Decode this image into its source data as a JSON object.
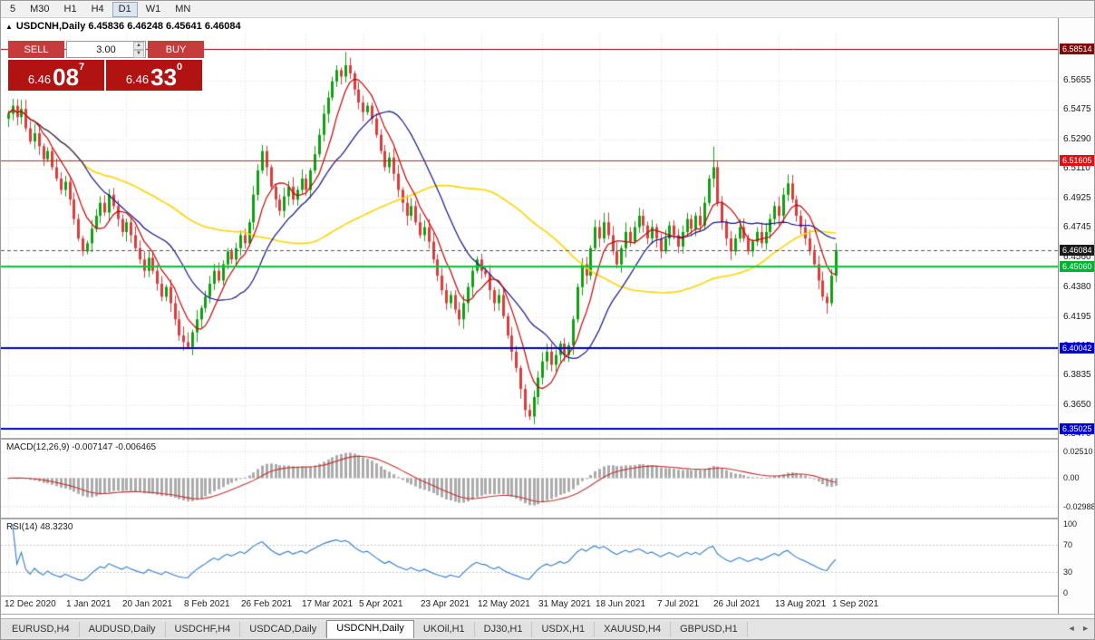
{
  "toolbar": {
    "timeframes": [
      "5",
      "M30",
      "H1",
      "H4",
      "D1",
      "W1",
      "MN"
    ],
    "active": "D1"
  },
  "chart_header": {
    "collapse_icon": "▲",
    "title": "USDCNH,Daily 6.45836 6.46248 6.45641 6.46084"
  },
  "trade_panel": {
    "sell_label": "SELL",
    "buy_label": "BUY",
    "volume": "3.00",
    "sell_price": {
      "prefix": "6.46",
      "big": "08",
      "sup": "7"
    },
    "buy_price": {
      "prefix": "6.46",
      "big": "33",
      "sup": "0"
    }
  },
  "price_scale": {
    "ticks": [
      "6.5655",
      "6.5475",
      "6.5290",
      "6.5110",
      "6.4925",
      "6.4745",
      "6.4560",
      "6.4380",
      "6.4195",
      "6.4015",
      "6.3835",
      "6.3650",
      "6.3470"
    ],
    "tags": [
      {
        "text": "6.58514",
        "price": 6.58514,
        "color": "#7d0b0b"
      },
      {
        "text": "6.51605",
        "price": 6.51605,
        "color": "#e01010"
      },
      {
        "text": "6.46084",
        "price": 6.46084,
        "color": "#1a1a1a"
      },
      {
        "text": "6.45060",
        "price": 6.4506,
        "color": "#00b22d"
      },
      {
        "text": "6.40042",
        "price": 6.40042,
        "color": "#0000d4"
      },
      {
        "text": "6.35025",
        "price": 6.35025,
        "color": "#0000d4"
      }
    ]
  },
  "levels": [
    {
      "price": 6.58514,
      "color": "#8b0000",
      "width": 1
    },
    {
      "price": 6.51605,
      "color": "#e01010",
      "width": 1
    },
    {
      "price": 6.4506,
      "color": "#00cc33",
      "width": 2
    },
    {
      "price": 6.40042,
      "color": "#0000d4",
      "width": 2
    },
    {
      "price": 6.35025,
      "color": "#0000d4",
      "width": 2
    }
  ],
  "macd_panel": {
    "label": "MACD(12,26,9) -0.007147 -0.006465",
    "scale_top": "0.02510",
    "scale_zero": "0.00",
    "scale_bottom": "-0.02988"
  },
  "rsi_panel": {
    "label": "RSI(14) 48.3230",
    "scale_labels": [
      "100",
      "70",
      "30",
      "0"
    ],
    "levels": [
      70,
      30
    ]
  },
  "date_axis": {
    "labels": [
      "12 Dec 2020",
      "1 Jan 2021",
      "20 Jan 2021",
      "8 Feb 2021",
      "26 Feb 2021",
      "17 Mar 2021",
      "5 Apr 2021",
      "23 Apr 2021",
      "12 May 2021",
      "31 May 2021",
      "18 Jun 2021",
      "7 Jul 2021",
      "26 Jul 2021",
      "13 Aug 2021",
      "1 Sep 2021"
    ],
    "indices": [
      0,
      14,
      27,
      41,
      54,
      68,
      81,
      95,
      108,
      122,
      135,
      149,
      162,
      176,
      189
    ]
  },
  "tabs": {
    "items": [
      "EURUSD,H4",
      "AUDUSD,Daily",
      "USDCHF,H4",
      "USDCAD,Daily",
      "USDCNH,Daily",
      "UKOil,H1",
      "DJ30,H1",
      "USDX,H1",
      "XAUUSD,H4",
      "GBPUSD,H1"
    ],
    "active_index": 4,
    "scroll_left_icon": "◄",
    "scroll_right_icon": "►"
  },
  "chart_data": {
    "type": "candlestick",
    "symbol": "USDCNH",
    "timeframe": "Daily",
    "last_ohlc": {
      "open": 6.45836,
      "high": 6.46248,
      "low": 6.45641,
      "close": 6.46084
    },
    "visible_price_range": {
      "top": 6.5946,
      "bottom": 6.3448
    },
    "first_open": 6.542,
    "closes": [
      6.545,
      6.55,
      6.543,
      6.548,
      6.536,
      6.528,
      6.533,
      6.525,
      6.517,
      6.522,
      6.512,
      6.505,
      6.498,
      6.503,
      6.492,
      6.48,
      6.468,
      6.46,
      6.465,
      6.474,
      6.482,
      6.49,
      6.484,
      6.495,
      6.488,
      6.48,
      6.472,
      6.478,
      6.47,
      6.462,
      6.455,
      6.448,
      6.456,
      6.448,
      6.44,
      6.432,
      6.438,
      6.428,
      6.418,
      6.408,
      6.404,
      6.401,
      6.41,
      6.418,
      6.425,
      6.432,
      6.44,
      6.448,
      6.442,
      6.452,
      6.46,
      6.455,
      6.462,
      6.47,
      6.465,
      6.478,
      6.495,
      6.51,
      6.522,
      6.512,
      6.5,
      6.492,
      6.485,
      6.494,
      6.5,
      6.492,
      6.498,
      6.505,
      6.498,
      6.51,
      6.52,
      6.532,
      6.545,
      6.555,
      6.565,
      6.572,
      6.568,
      6.575,
      6.57,
      6.56,
      6.552,
      6.546,
      6.55,
      6.542,
      6.532,
      6.522,
      6.512,
      6.518,
      6.508,
      6.498,
      6.49,
      6.482,
      6.488,
      6.478,
      6.47,
      6.475,
      6.466,
      6.455,
      6.445,
      6.436,
      6.428,
      6.433,
      6.424,
      6.418,
      6.428,
      6.438,
      6.448,
      6.455,
      6.448,
      6.446,
      6.436,
      6.428,
      6.433,
      6.42,
      6.408,
      6.398,
      6.388,
      6.375,
      6.362,
      6.358,
      6.37,
      6.382,
      6.392,
      6.398,
      6.39,
      6.396,
      6.403,
      6.396,
      6.402,
      6.418,
      6.438,
      6.452,
      6.445,
      6.462,
      6.475,
      6.468,
      6.478,
      6.47,
      6.46,
      6.452,
      6.462,
      6.472,
      6.466,
      6.475,
      6.482,
      6.476,
      6.468,
      6.475,
      6.468,
      6.46,
      6.468,
      6.476,
      6.47,
      6.463,
      6.472,
      6.48,
      6.474,
      6.482,
      6.476,
      6.49,
      6.505,
      6.512,
      6.49,
      6.478,
      6.468,
      6.46,
      6.468,
      6.475,
      6.468,
      6.46,
      6.466,
      6.472,
      6.465,
      6.472,
      6.48,
      6.488,
      6.482,
      6.495,
      6.502,
      6.492,
      6.482,
      6.475,
      6.468,
      6.46,
      6.452,
      6.442,
      6.432,
      6.428,
      6.445,
      6.4608
    ],
    "spike_highs": {
      "77": 6.5832,
      "161": 6.5248,
      "178": 6.5075
    },
    "spike_lows": {
      "41": 6.3995,
      "119": 6.3558,
      "187": 6.4215
    },
    "indicators": {
      "ma_fast": 7,
      "ma_mid": 18,
      "ma_slow": 55,
      "macd_fast": 12,
      "macd_slow": 26,
      "macd_signal": 9,
      "rsi_period": 14
    },
    "macd_current": [
      -0.007147,
      -0.006465
    ],
    "rsi_current": 48.323,
    "colors": {
      "up": "#0fa00f",
      "down": "#dd3c3c",
      "ma_fast": "#cc0000",
      "ma_mid": "#15158c",
      "ma_slow": "#ffd400",
      "macd_hist": "#ababab",
      "macd_signal": "#c83232",
      "rsi_line": "#2e7bd0",
      "grid": "#dcdcdc"
    }
  }
}
